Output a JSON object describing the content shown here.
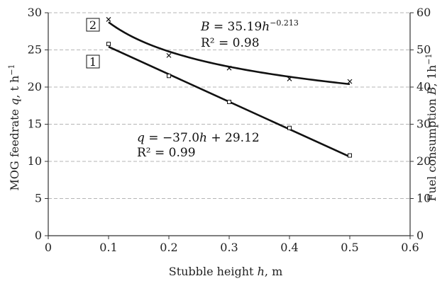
{
  "chart_data": {
    "type": "scatter",
    "xlabel_main": "Stubble height ",
    "xlabel_var": "h",
    "xlabel_unit": ", m",
    "ylabel_left_main": "MOG feedrate ",
    "ylabel_left_var": "q",
    "ylabel_left_unit": ", t h",
    "ylabel_left_exp": "−1",
    "ylabel_right_main": "Fuel consumption ",
    "ylabel_right_var": "B",
    "ylabel_right_unit": ", 1h",
    "ylabel_right_exp": "−1",
    "xlim": [
      0,
      0.6
    ],
    "ylim_left": [
      0,
      30
    ],
    "ylim_right": [
      0,
      60
    ],
    "x_ticks": [
      "0",
      "0.1",
      "0.2",
      "0.3",
      "0.4",
      "0.5",
      "0.6"
    ],
    "y_left_ticks": [
      "0",
      "5",
      "10",
      "15",
      "20",
      "25",
      "30"
    ],
    "y_right_ticks": [
      "0",
      "10",
      "20",
      "30",
      "40",
      "50",
      "60"
    ],
    "grid": "horizontal dashed",
    "series": [
      {
        "label": "1",
        "axis": "left",
        "marker": "square",
        "x": [
          0.1,
          0.2,
          0.3,
          0.4,
          0.5
        ],
        "y": [
          25.8,
          21.5,
          18.0,
          14.5,
          10.8
        ],
        "fit": {
          "slope": -37.0,
          "intercept": 29.12
        }
      },
      {
        "label": "2",
        "axis": "right",
        "marker": "x",
        "x": [
          0.1,
          0.2,
          0.3,
          0.4,
          0.5
        ],
        "y": [
          58.2,
          48.5,
          45.1,
          42.2,
          41.5
        ],
        "fit": {
          "a": 35.19,
          "b": -0.213
        }
      }
    ],
    "annotations": {
      "eq1_lhs": "q",
      "eq1_mid": " = −37.0",
      "eq1_var": "h",
      "eq1_rhs": " + 29.12",
      "r2_1": "R² = 0.99",
      "eq2_lhs": "B",
      "eq2_mid": " = 35.19",
      "eq2_var": "h",
      "eq2_exp": "−0.213",
      "r2_2": "R² = 0.98"
    }
  }
}
